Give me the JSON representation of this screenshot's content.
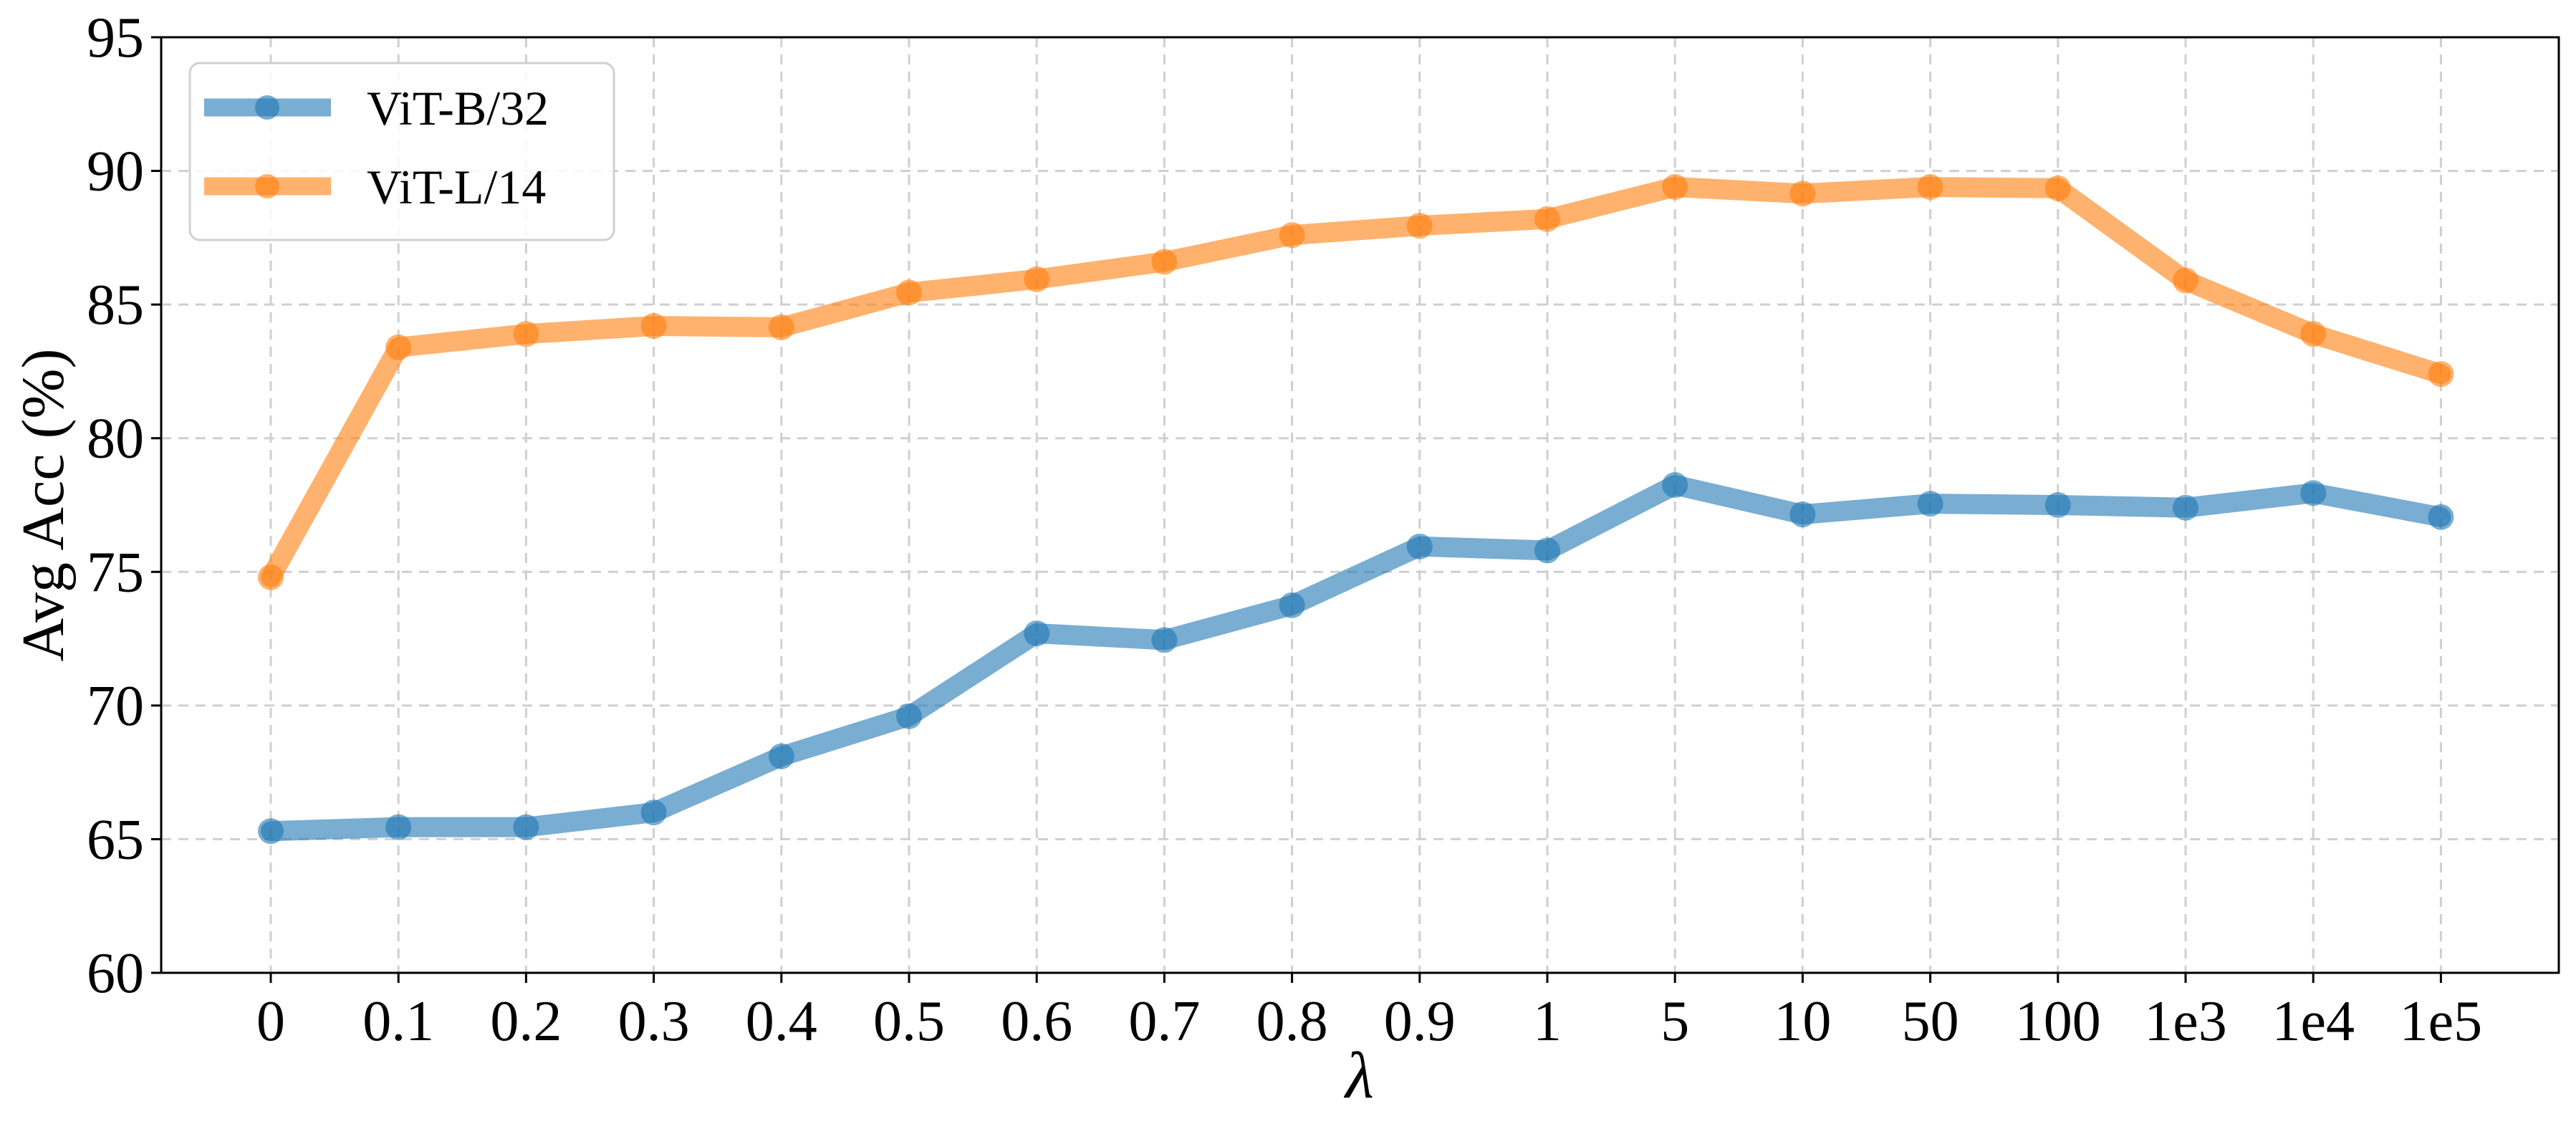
{
  "chart_data": {
    "type": "line",
    "title": "",
    "xlabel": "λ",
    "ylabel": "Avg Acc (%)",
    "categories": [
      "0",
      "0.1",
      "0.2",
      "0.3",
      "0.4",
      "0.5",
      "0.6",
      "0.7",
      "0.8",
      "0.9",
      "1",
      "5",
      "10",
      "50",
      "100",
      "1e3",
      "1e4",
      "1e5"
    ],
    "yticks": [
      "60",
      "65",
      "70",
      "75",
      "80",
      "85",
      "90",
      "95"
    ],
    "ylim": [
      60,
      95
    ],
    "grid": true,
    "legend_position": "top-left",
    "series": [
      {
        "name": "ViT-B/32",
        "color": "#1f77b4",
        "values": [
          65.3,
          65.45,
          65.45,
          66.0,
          68.1,
          69.6,
          72.7,
          72.45,
          73.75,
          75.95,
          75.8,
          78.25,
          77.15,
          77.55,
          77.5,
          77.4,
          77.95,
          77.05
        ]
      },
      {
        "name": "ViT-L/14",
        "color": "#ff7f0e",
        "values": [
          74.8,
          83.4,
          83.9,
          84.2,
          84.15,
          85.45,
          85.95,
          86.6,
          87.6,
          87.95,
          88.2,
          89.4,
          89.15,
          89.4,
          89.35,
          85.9,
          83.9,
          82.4
        ]
      }
    ]
  }
}
